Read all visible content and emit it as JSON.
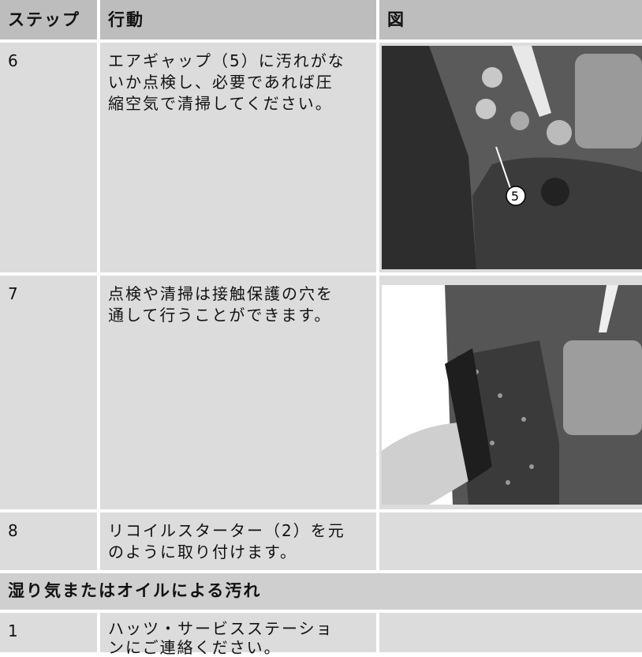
{
  "table": {
    "headers": [
      "ステップ",
      "行動",
      "図"
    ],
    "rows": [
      {
        "step": "6",
        "action": [
          "エアギャップ（5）に汚れがな",
          "いか点検し、必要であれば圧",
          "縮空気で清掃してください。"
        ],
        "callout": "5"
      },
      {
        "step": "7",
        "action": [
          "点検や清掃は接触保護の穴を",
          "通して行うことができます。"
        ]
      },
      {
        "step": "8",
        "action": [
          "リコイルスターター（2）を元",
          "のように取り付けます。"
        ]
      }
    ],
    "section": {
      "title": "湿り気またはオイルによる汚れ",
      "rows": [
        {
          "step": "1",
          "action": [
            "ハッツ・サービスステーショ",
            "ンにご連絡ください。"
          ]
        }
      ]
    }
  }
}
